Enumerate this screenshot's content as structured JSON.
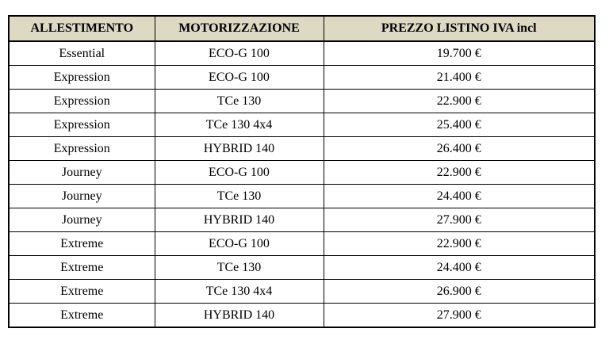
{
  "table": {
    "headers": [
      "ALLESTIMENTO",
      "MOTORIZZAZIONE",
      "PREZZO LISTINO IVA incl"
    ],
    "rows": [
      [
        "Essential",
        "ECO-G 100",
        "19.700 €"
      ],
      [
        "Expression",
        "ECO-G 100",
        "21.400 €"
      ],
      [
        "Expression",
        "TCe 130",
        "22.900 €"
      ],
      [
        "Expression",
        "TCe 130 4x4",
        "25.400 €"
      ],
      [
        "Expression",
        "HYBRID 140",
        "26.400 €"
      ],
      [
        "Journey",
        "ECO-G 100",
        "22.900 €"
      ],
      [
        "Journey",
        "TCe 130",
        "24.400 €"
      ],
      [
        "Journey",
        "HYBRID 140",
        "27.900 €"
      ],
      [
        "Extreme",
        "ECO-G 100",
        "22.900 €"
      ],
      [
        "Extreme",
        "TCe 130",
        "24.400 €"
      ],
      [
        "Extreme",
        "TCe 130 4x4",
        "26.900 €"
      ],
      [
        "Extreme",
        "HYBRID 140",
        "27.900 €"
      ]
    ],
    "colors": {
      "header_background": "#ddd9c3",
      "border": "#000000"
    }
  }
}
